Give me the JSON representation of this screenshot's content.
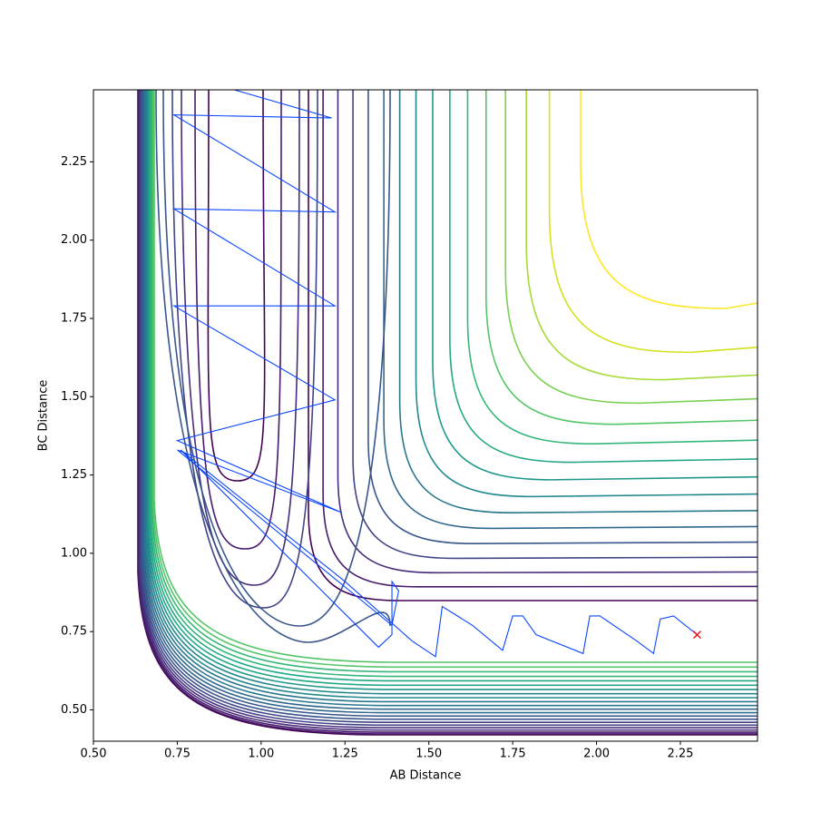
{
  "chart_data": {
    "type": "contour",
    "xlabel": "AB Distance",
    "ylabel": "BC Distance",
    "xlim": [
      0.5,
      2.48
    ],
    "ylim": [
      0.4,
      2.48
    ],
    "xticks": [
      {
        "value": 0.5,
        "label": "0.50"
      },
      {
        "value": 0.75,
        "label": "0.75"
      },
      {
        "value": 1.0,
        "label": "1.00"
      },
      {
        "value": 1.25,
        "label": "1.25"
      },
      {
        "value": 1.5,
        "label": "1.50"
      },
      {
        "value": 1.75,
        "label": "1.75"
      },
      {
        "value": 2.0,
        "label": "2.00"
      },
      {
        "value": 2.25,
        "label": "2.25"
      }
    ],
    "yticks": [
      {
        "value": 0.5,
        "label": "0.50"
      },
      {
        "value": 0.75,
        "label": "0.75"
      },
      {
        "value": 1.0,
        "label": "1.00"
      },
      {
        "value": 1.25,
        "label": "1.25"
      },
      {
        "value": 1.5,
        "label": "1.50"
      },
      {
        "value": 1.75,
        "label": "1.75"
      },
      {
        "value": 2.0,
        "label": "2.00"
      },
      {
        "value": 2.25,
        "label": "2.25"
      }
    ],
    "series": [
      {
        "color": "#0a46ff",
        "x": [
          0.92,
          1.21,
          0.74,
          1.22,
          0.74,
          1.22,
          0.74,
          1.22,
          0.75,
          1.24,
          0.75,
          1.39,
          1.41,
          1.39,
          1.39,
          1.35,
          0.76,
          1.25,
          1.45,
          1.52,
          1.54,
          1.63,
          1.72,
          1.75,
          1.78,
          1.82,
          1.96,
          1.98,
          2.01,
          2.12,
          2.17,
          2.19,
          2.23,
          2.3
        ],
        "y": [
          2.48,
          2.39,
          2.4,
          2.09,
          2.1,
          1.79,
          1.79,
          1.49,
          1.36,
          1.13,
          1.33,
          0.77,
          0.88,
          0.91,
          0.74,
          0.7,
          1.33,
          0.91,
          0.72,
          0.67,
          0.83,
          0.77,
          0.69,
          0.8,
          0.8,
          0.74,
          0.68,
          0.8,
          0.8,
          0.72,
          0.68,
          0.79,
          0.8,
          0.74
        ]
      }
    ],
    "marker": {
      "x": 2.3,
      "y": 0.74,
      "color": "#ff0000"
    }
  }
}
